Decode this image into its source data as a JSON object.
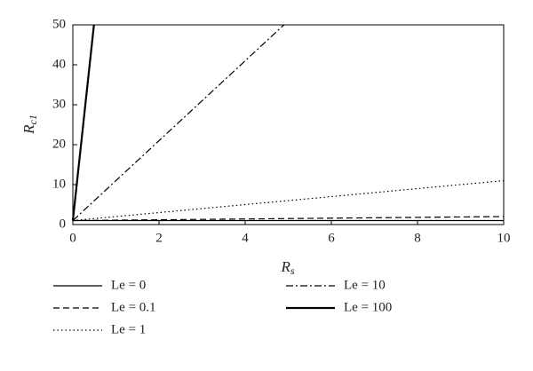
{
  "chart_data": {
    "type": "line",
    "x_label": {
      "main": "R",
      "sub": "s"
    },
    "y_label": {
      "main": "R",
      "sub": "c1"
    },
    "xlim": [
      0,
      10
    ],
    "xticks": [
      0,
      2,
      4,
      6,
      8,
      10
    ],
    "ylim": [
      0,
      50
    ],
    "yticks": [
      0,
      10,
      20,
      30,
      40,
      50
    ],
    "series": [
      {
        "name": "Le = 0",
        "color": "#000000",
        "dash": "solid",
        "width": 1.2,
        "x": [
          0,
          10
        ],
        "values": [
          1,
          1
        ]
      },
      {
        "name": "Le = 0.1",
        "color": "#000000",
        "dash": "dashed",
        "width": 1.2,
        "x": [
          0,
          10
        ],
        "values": [
          1,
          2
        ]
      },
      {
        "name": "Le = 1",
        "color": "#000000",
        "dash": "dotted",
        "width": 1.2,
        "x": [
          0,
          10
        ],
        "values": [
          1,
          11
        ]
      },
      {
        "name": "Le = 10",
        "color": "#000000",
        "dash": "dashdot",
        "width": 1.2,
        "x": [
          0,
          4.9
        ],
        "values": [
          1,
          50
        ]
      },
      {
        "name": "Le = 100",
        "color": "#000000",
        "dash": "solid",
        "width": 2.2,
        "x": [
          0,
          0.49
        ],
        "values": [
          1,
          50
        ]
      }
    ]
  }
}
